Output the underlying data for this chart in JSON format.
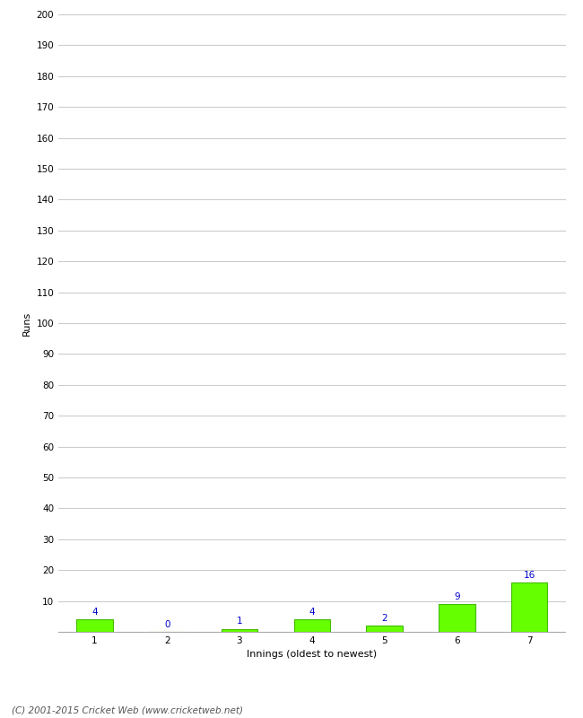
{
  "categories": [
    "1",
    "2",
    "3",
    "4",
    "5",
    "6",
    "7"
  ],
  "values": [
    4,
    0,
    1,
    4,
    2,
    9,
    16
  ],
  "bar_color": "#66ff00",
  "bar_edge_color": "#44bb00",
  "label_color": "#0000cc",
  "xlabel": "Innings (oldest to newest)",
  "ylabel": "Runs",
  "ylim": [
    0,
    200
  ],
  "yticks": [
    10,
    20,
    30,
    40,
    50,
    60,
    70,
    80,
    90,
    100,
    110,
    120,
    130,
    140,
    150,
    160,
    170,
    180,
    190,
    200
  ],
  "background_color": "#ffffff",
  "grid_color": "#cccccc",
  "footer": "(C) 2001-2015 Cricket Web (www.cricketweb.net)",
  "label_fontsize": 7.5,
  "axis_fontsize": 7.5,
  "footer_fontsize": 7.5,
  "xlabel_fontsize": 8,
  "ylabel_fontsize": 8,
  "bar_width": 0.5
}
